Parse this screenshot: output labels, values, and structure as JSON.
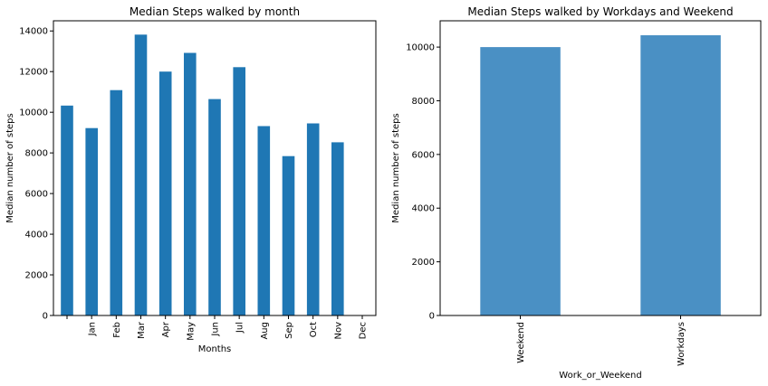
{
  "chart_data": [
    {
      "type": "bar",
      "title": "Median Steps walked by month",
      "xlabel": "Months",
      "ylabel": "Median number of steps",
      "tick_labels": [
        "",
        "Jan",
        "Feb",
        "Mar",
        "Apr",
        "May",
        "Jun",
        "Jul",
        "Aug",
        "Sep",
        "Oct",
        "Nov",
        "Dec"
      ],
      "values": [
        10330,
        9220,
        11090,
        13820,
        12000,
        12920,
        10650,
        12220,
        9320,
        7840,
        9450,
        8520
      ],
      "ylim": [
        0,
        14500
      ],
      "yticks": [
        0,
        2000,
        4000,
        6000,
        8000,
        10000,
        12000,
        14000
      ],
      "color": "#1f77b4",
      "grid": false,
      "legend": "none"
    },
    {
      "type": "bar",
      "title": "Median Steps walked by Workdays and Weekend",
      "xlabel": "Work_or_Weekend",
      "ylabel": "Median number of steps",
      "categories": [
        "Weekend",
        "Workdays"
      ],
      "values": [
        10000,
        10440
      ],
      "ylim": [
        0,
        10980
      ],
      "yticks": [
        0,
        2000,
        4000,
        6000,
        8000,
        10000
      ],
      "color": "#4a90c4",
      "grid": false,
      "legend": "none"
    }
  ]
}
